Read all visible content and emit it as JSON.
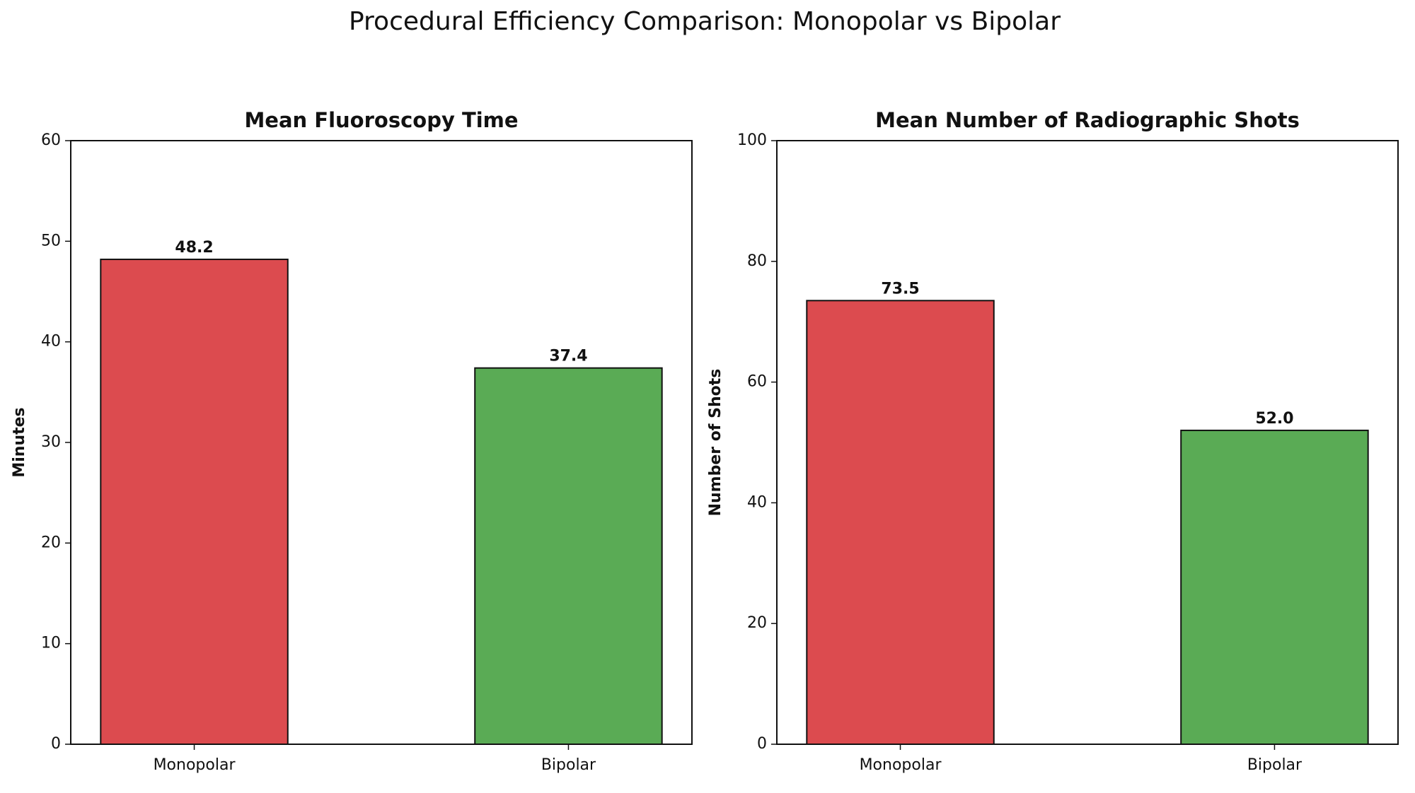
{
  "title": "Procedural Efficiency Comparison: Monopolar vs Bipolar",
  "chart_data": [
    {
      "type": "bar",
      "title": "Mean Fluoroscopy Time",
      "ylabel": "Minutes",
      "categories": [
        "Monopolar",
        "Bipolar"
      ],
      "values": [
        48.2,
        37.4
      ],
      "colors": [
        "#dc4b4f",
        "#5aab55"
      ],
      "ylim": [
        0,
        60
      ],
      "yticks": [
        0,
        10,
        20,
        30,
        40,
        50,
        60
      ]
    },
    {
      "type": "bar",
      "title": "Mean Number of Radiographic Shots",
      "ylabel": "Number of Shots",
      "categories": [
        "Monopolar",
        "Bipolar"
      ],
      "values": [
        73.5,
        52
      ],
      "value_labels": [
        "73.5",
        "52.0"
      ],
      "colors": [
        "#dc4b4f",
        "#5aab55"
      ],
      "ylim": [
        0,
        100
      ],
      "yticks": [
        0,
        20,
        40,
        60,
        80,
        100
      ]
    }
  ]
}
